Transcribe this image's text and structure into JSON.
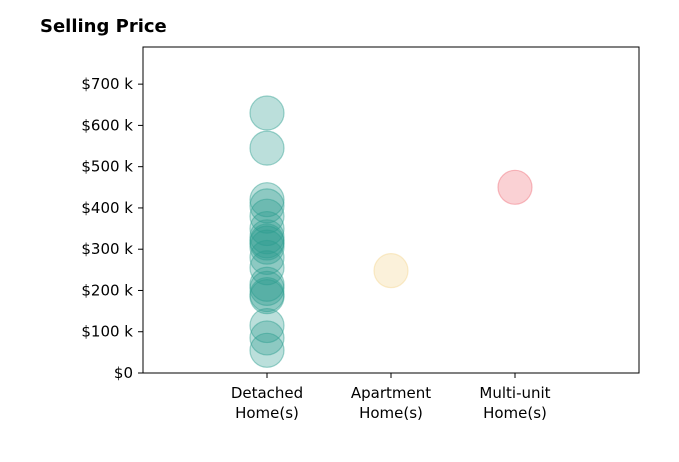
{
  "chart_data": {
    "type": "scatter",
    "title": "Selling Price",
    "xlabel": "",
    "ylabel": "",
    "categories": [
      [
        "Detached",
        "Home(s)"
      ],
      [
        "Apartment",
        "Home(s)"
      ],
      [
        "Multi-unit",
        "Home(s)"
      ]
    ],
    "y_ticks": [
      0,
      100000,
      200000,
      300000,
      400000,
      500000,
      600000,
      700000
    ],
    "y_tick_labels": [
      "$0",
      "$100 k",
      "$200 k",
      "$300 k",
      "$400 k",
      "$500 k",
      "$600 k",
      "$700 k"
    ],
    "ylim": [
      0,
      790000
    ],
    "grid": false,
    "series": [
      {
        "category": 0,
        "color": "#2a9d8f",
        "values": [
          630000,
          545000,
          420000,
          405000,
          380000,
          350000,
          330000,
          320000,
          315000,
          305000,
          280000,
          255000,
          215000,
          205000,
          190000,
          185000,
          115000,
          85000,
          55000
        ]
      },
      {
        "category": 1,
        "color": "#f4d58d",
        "values": [
          248000
        ]
      },
      {
        "category": 2,
        "color": "#ef6f7a",
        "values": [
          450000
        ]
      }
    ]
  }
}
